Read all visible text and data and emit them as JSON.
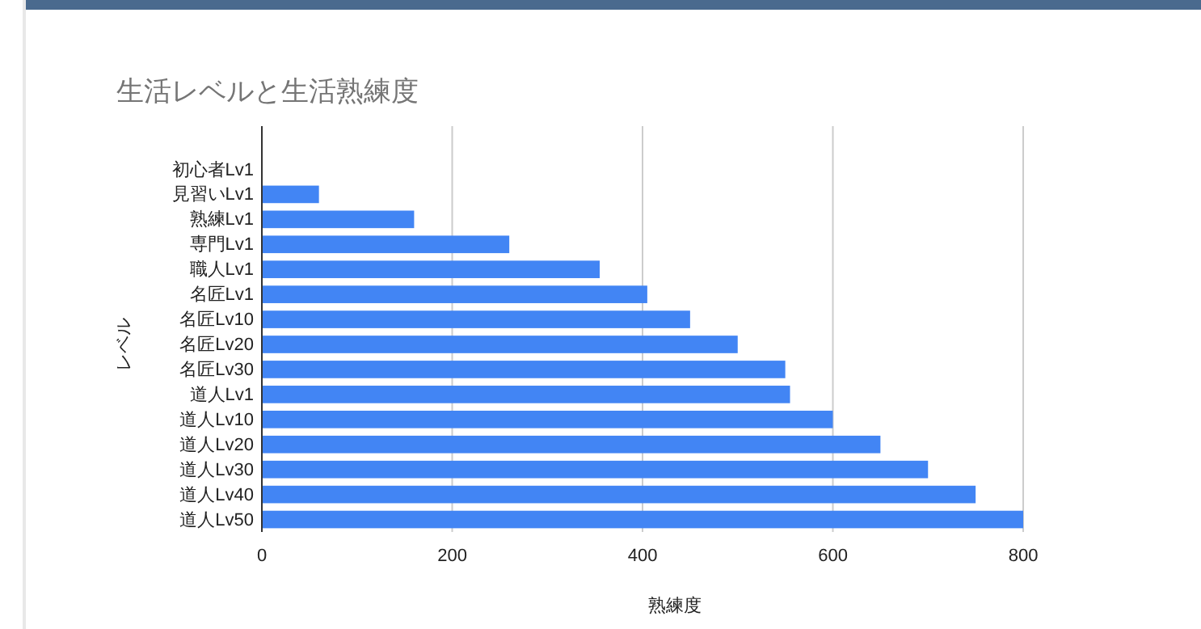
{
  "chart_data": {
    "type": "bar",
    "orientation": "horizontal",
    "title": "生活レベルと生活熟練度",
    "xlabel": "熟練度",
    "ylabel": "レベル",
    "categories": [
      "初心者Lv1",
      "見習いLv1",
      "熟練Lv1",
      "専門Lv1",
      "職人Lv1",
      "名匠Lv1",
      "名匠Lv10",
      "名匠Lv20",
      "名匠Lv30",
      "道人Lv1",
      "道人Lv10",
      "道人Lv20",
      "道人Lv30",
      "道人Lv40",
      "道人Lv50"
    ],
    "values": [
      0,
      60,
      160,
      260,
      355,
      405,
      450,
      500,
      550,
      555,
      600,
      650,
      700,
      750,
      800
    ],
    "color": "#4285f4",
    "xlim": [
      0,
      800
    ],
    "xticks": [
      0,
      200,
      400,
      600,
      800
    ],
    "grid": "x"
  }
}
